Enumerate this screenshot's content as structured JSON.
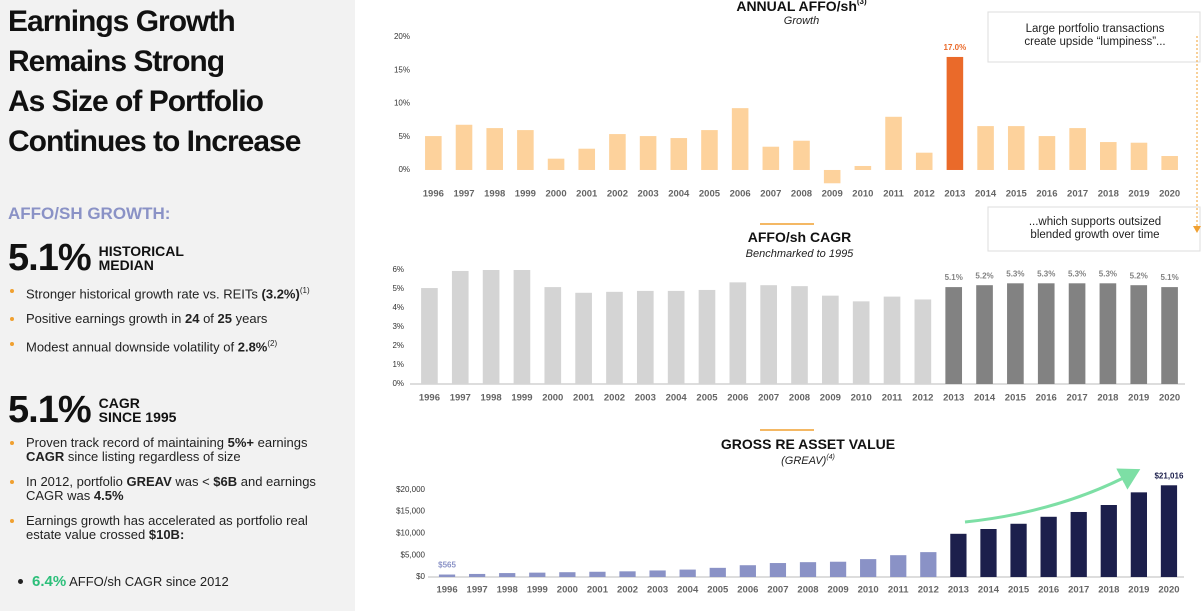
{
  "panel": {
    "title": [
      "Earnings Growth",
      "Remains Strong",
      "As Size of Portfolio",
      "Continues to Increase"
    ],
    "heading": "AFFO/SH GROWTH:",
    "sections": [
      {
        "stat": "5.1%",
        "stat_label": [
          "HISTORICAL",
          "MEDIAN"
        ],
        "bullets": [
          [
            "Stronger historical growth rate vs. REITs ",
            {
              "text": "(3.2%)",
              "style": "bold"
            },
            {
              "text": "(1)",
              "style": "sup"
            }
          ],
          [
            "Positive earnings growth in ",
            {
              "text": "24",
              "style": "bold"
            },
            " of ",
            {
              "text": "25",
              "style": "bold"
            },
            " years"
          ],
          [
            "Modest annual downside volatility of ",
            {
              "text": "2.8%",
              "style": "bold"
            },
            {
              "text": "(2)",
              "style": "sup"
            }
          ]
        ]
      },
      {
        "stat": "5.1%",
        "stat_label": [
          "CAGR",
          "SINCE 1995"
        ],
        "bullets": [
          [
            "Proven track record of maintaining ",
            {
              "text": "5%+",
              "style": "bold"
            },
            " earnings ",
            {
              "text": "CAGR",
              "style": "bold"
            },
            " since listing regardless of size"
          ],
          [
            "In 2012, portfolio ",
            {
              "text": "GREAV",
              "style": "bold"
            },
            " was < ",
            {
              "text": "$6B",
              "style": "bold"
            },
            " and earnings CAGR was ",
            {
              "text": "4.5%",
              "style": "bold"
            }
          ],
          [
            "Earnings growth has accelerated as portfolio real estate value crossed ",
            {
              "text": "$10B:",
              "style": "bold"
            }
          ]
        ]
      }
    ],
    "sub_bullet": [
      {
        "text": "6.4%",
        "style": "green"
      },
      " AFFO/sh CAGR since 2012"
    ]
  },
  "chart_data": [
    {
      "type": "bar",
      "title": "ANNUAL AFFO/sh",
      "title_sup": "(3)",
      "subtitle": "Growth",
      "categories": [
        "1996",
        "1997",
        "1998",
        "1999",
        "2000",
        "2001",
        "2002",
        "2003",
        "2004",
        "2005",
        "2006",
        "2007",
        "2008",
        "2009",
        "2010",
        "2011",
        "2012",
        "2013",
        "2014",
        "2015",
        "2016",
        "2017",
        "2018",
        "2019",
        "2020"
      ],
      "values": [
        5.1,
        6.8,
        6.3,
        6.0,
        1.7,
        3.2,
        5.4,
        5.1,
        4.8,
        6.0,
        9.3,
        3.5,
        4.4,
        -2.0,
        0.6,
        8.0,
        2.6,
        17.0,
        6.6,
        6.6,
        5.1,
        6.3,
        4.2,
        4.1,
        2.1
      ],
      "value_labels": [
        null,
        null,
        null,
        null,
        null,
        null,
        null,
        null,
        null,
        null,
        null,
        null,
        null,
        null,
        null,
        null,
        null,
        "17.0%",
        null,
        null,
        null,
        null,
        null,
        null,
        null
      ],
      "colors": [
        "#fdd29c",
        "#fdd29c",
        "#fdd29c",
        "#fdd29c",
        "#fdd29c",
        "#fdd29c",
        "#fdd29c",
        "#fdd29c",
        "#fdd29c",
        "#fdd29c",
        "#fdd29c",
        "#fdd29c",
        "#fdd29c",
        "#fdd29c",
        "#fdd29c",
        "#fdd29c",
        "#fdd29c",
        "#ea6a2a",
        "#fdd29c",
        "#fdd29c",
        "#fdd29c",
        "#fdd29c",
        "#fdd29c",
        "#fdd29c",
        "#fdd29c"
      ],
      "ylim": [
        -2.5,
        20
      ],
      "yticks": [
        {
          "value": 0,
          "label": "0%"
        },
        {
          "value": 5,
          "label": "5%"
        },
        {
          "value": 10,
          "label": "10%"
        },
        {
          "value": 15,
          "label": "15%"
        },
        {
          "value": 20,
          "label": "20%"
        }
      ],
      "annotations": [
        [
          "Large portfolio transactions",
          "create upside “lumpiness”..."
        ],
        [
          "...which supports outsized",
          "blended growth over time"
        ]
      ]
    },
    {
      "type": "bar",
      "title": "AFFO/sh CAGR",
      "subtitle": "Benchmarked to 1995",
      "categories": [
        "1996",
        "1997",
        "1998",
        "1999",
        "2000",
        "2001",
        "2002",
        "2003",
        "2004",
        "2005",
        "2006",
        "2007",
        "2008",
        "2009",
        "2010",
        "2011",
        "2012",
        "2013",
        "2014",
        "2015",
        "2016",
        "2017",
        "2018",
        "2019",
        "2020"
      ],
      "values": [
        5.05,
        5.95,
        6.0,
        6.0,
        5.1,
        4.8,
        4.85,
        4.9,
        4.9,
        4.95,
        5.35,
        5.2,
        5.15,
        4.65,
        4.35,
        4.6,
        4.45,
        5.1,
        5.2,
        5.3,
        5.3,
        5.3,
        5.3,
        5.2,
        5.1
      ],
      "value_labels": [
        null,
        null,
        null,
        null,
        null,
        null,
        null,
        null,
        null,
        null,
        null,
        null,
        null,
        null,
        null,
        null,
        null,
        "5.1%",
        "5.2%",
        "5.3%",
        "5.3%",
        "5.3%",
        "5.3%",
        "5.2%",
        "5.1%"
      ],
      "colors": [
        "#d4d4d4",
        "#d4d4d4",
        "#d4d4d4",
        "#d4d4d4",
        "#d4d4d4",
        "#d4d4d4",
        "#d4d4d4",
        "#d4d4d4",
        "#d4d4d4",
        "#d4d4d4",
        "#d4d4d4",
        "#d4d4d4",
        "#d4d4d4",
        "#d4d4d4",
        "#d4d4d4",
        "#d4d4d4",
        "#d4d4d4",
        "#828282",
        "#828282",
        "#828282",
        "#828282",
        "#828282",
        "#828282",
        "#828282",
        "#828282"
      ],
      "ylim": [
        0,
        6
      ],
      "yticks": [
        {
          "value": 0,
          "label": "0%"
        },
        {
          "value": 1,
          "label": "1%"
        },
        {
          "value": 2,
          "label": "2%"
        },
        {
          "value": 3,
          "label": "3%"
        },
        {
          "value": 4,
          "label": "4%"
        },
        {
          "value": 5,
          "label": "5%"
        },
        {
          "value": 6,
          "label": "6%"
        }
      ]
    },
    {
      "type": "bar",
      "title": "GROSS RE ASSET VALUE",
      "subtitle": "(GREAV)",
      "subtitle_sup": "(4)",
      "categories": [
        "1996",
        "1997",
        "1998",
        "1999",
        "2000",
        "2001",
        "2002",
        "2003",
        "2004",
        "2005",
        "2006",
        "2007",
        "2008",
        "2009",
        "2010",
        "2011",
        "2012",
        "2013",
        "2014",
        "2015",
        "2016",
        "2017",
        "2018",
        "2019",
        "2020"
      ],
      "values": [
        565,
        700,
        900,
        1000,
        1100,
        1200,
        1300,
        1500,
        1700,
        2100,
        2700,
        3200,
        3400,
        3500,
        4100,
        5000,
        5700,
        9900,
        11000,
        12200,
        13800,
        14900,
        16500,
        19400,
        21016
      ],
      "value_labels": [
        "$565",
        null,
        null,
        null,
        null,
        null,
        null,
        null,
        null,
        null,
        null,
        null,
        null,
        null,
        null,
        null,
        null,
        null,
        null,
        null,
        null,
        null,
        null,
        null,
        "$21,016"
      ],
      "colors": [
        "#8a92c6",
        "#8a92c6",
        "#8a92c6",
        "#8a92c6",
        "#8a92c6",
        "#8a92c6",
        "#8a92c6",
        "#8a92c6",
        "#8a92c6",
        "#8a92c6",
        "#8a92c6",
        "#8a92c6",
        "#8a92c6",
        "#8a92c6",
        "#8a92c6",
        "#8a92c6",
        "#8a92c6",
        "#1c1f4c",
        "#1c1f4c",
        "#1c1f4c",
        "#1c1f4c",
        "#1c1f4c",
        "#1c1f4c",
        "#1c1f4c",
        "#1c1f4c"
      ],
      "ylim": [
        0,
        22000
      ],
      "yticks": [
        {
          "value": 0,
          "label": "$0"
        },
        {
          "value": 5000,
          "label": "$5,000"
        },
        {
          "value": 10000,
          "label": "$10,000"
        },
        {
          "value": 15000,
          "label": "$15,000"
        },
        {
          "value": 20000,
          "label": "$20,000"
        }
      ]
    }
  ]
}
